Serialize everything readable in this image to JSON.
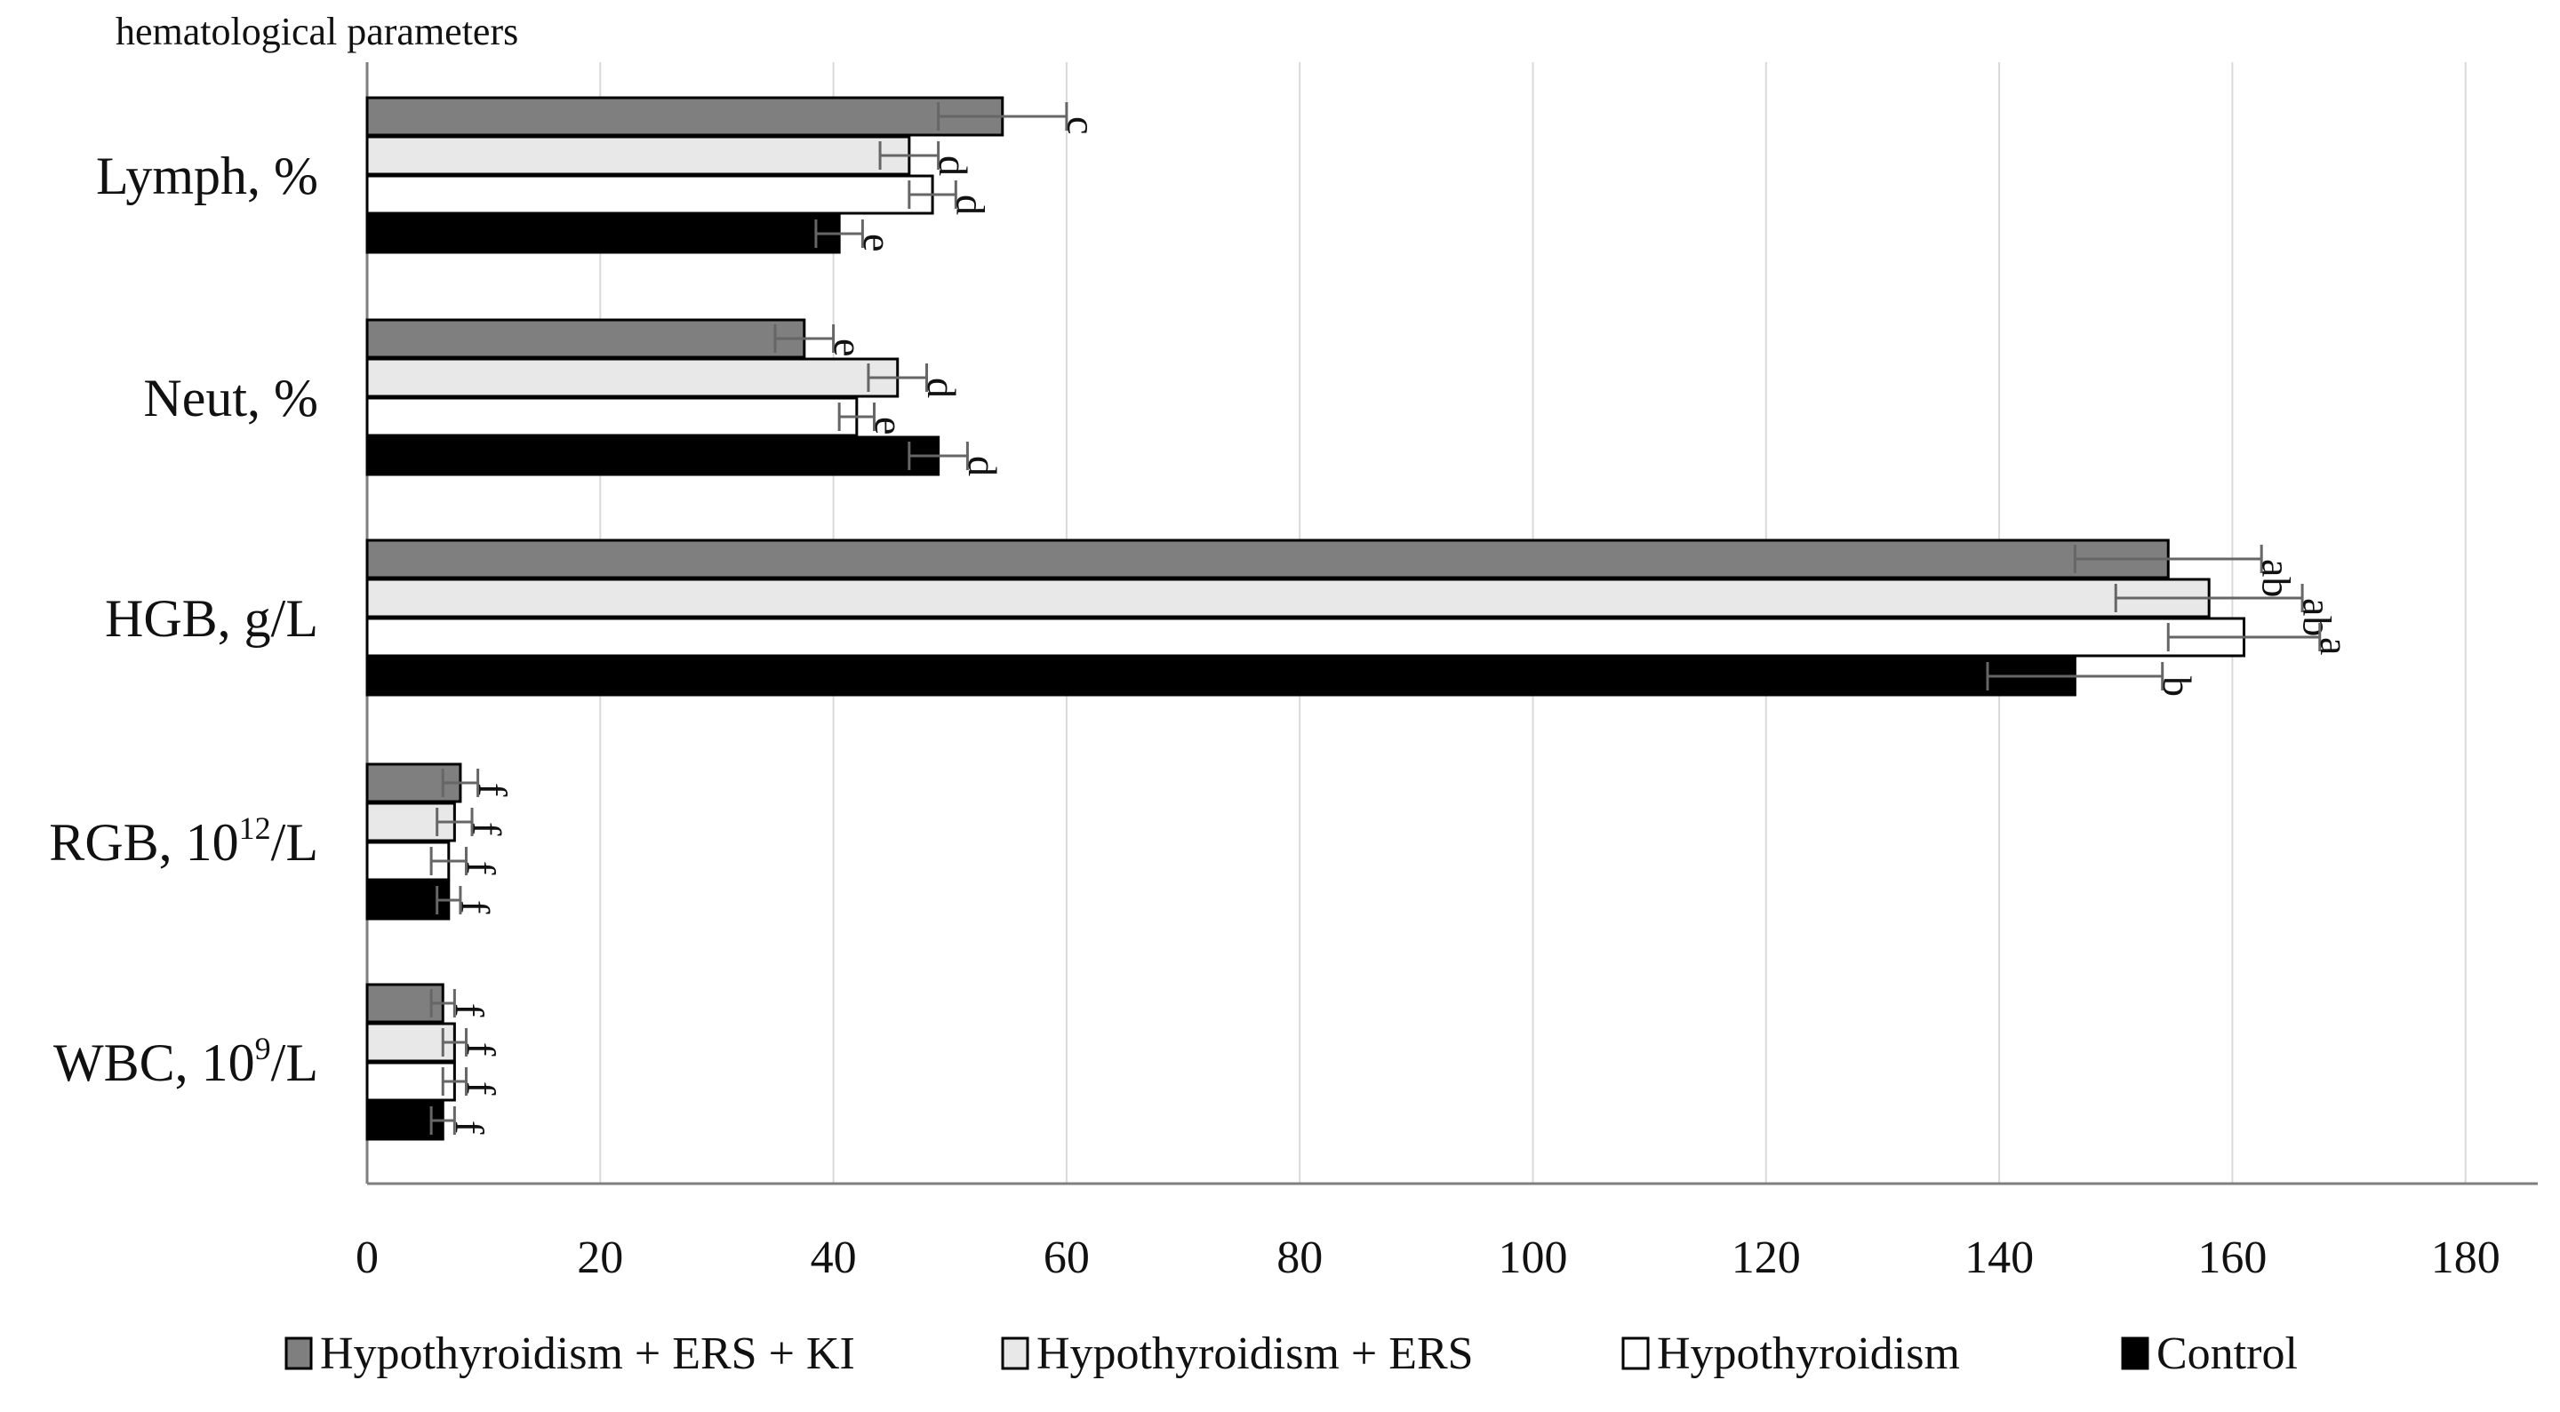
{
  "corner_label": "hematological parameters",
  "chart_data": {
    "type": "bar",
    "orientation": "horizontal",
    "title": "",
    "xlabel": "",
    "ylabel": "",
    "xlim": [
      0,
      180
    ],
    "x_ticks": [
      0,
      20,
      40,
      60,
      80,
      100,
      120,
      140,
      160,
      180
    ],
    "vertical_grid": true,
    "legend_position": "bottom",
    "categories": [
      {
        "label": "Lymph, %",
        "sup": "",
        "suffix": ""
      },
      {
        "label": "Neut, %",
        "sup": "",
        "suffix": ""
      },
      {
        "label": "HGB, g/L",
        "sup": "",
        "suffix": ""
      },
      {
        "label": "RGB, 10",
        "sup": "12",
        "suffix": "/L"
      },
      {
        "label": "WBC, 10",
        "sup": "9",
        "suffix": "/L"
      }
    ],
    "series": [
      {
        "name": "Hypothyroidism + ERS + KI",
        "color": "#7f7f7f",
        "values": [
          54.5,
          37.5,
          154.5,
          8,
          6.5
        ],
        "errors": [
          5.5,
          2.5,
          8,
          1.5,
          1
        ],
        "letters": [
          "c",
          "e",
          "ab",
          "f",
          "f"
        ]
      },
      {
        "name": "Hypothyroidism + ERS",
        "color": "#e8e8e8",
        "values": [
          46.5,
          45.5,
          158,
          7.5,
          7.5
        ],
        "errors": [
          2.5,
          2.5,
          8,
          1.5,
          1
        ],
        "letters": [
          "d",
          "d",
          "ab",
          "f",
          "f"
        ]
      },
      {
        "name": "Hypothyroidism",
        "color": "#ffffff",
        "values": [
          48.5,
          42,
          161,
          7,
          7.5
        ],
        "errors": [
          2,
          1.5,
          6.5,
          1.5,
          1
        ],
        "letters": [
          "d",
          "e",
          "a",
          "f",
          "f"
        ]
      },
      {
        "name": "Control",
        "color": "#000000",
        "values": [
          40.5,
          49,
          146.5,
          7,
          6.5
        ],
        "errors": [
          2,
          2.5,
          7.5,
          1,
          1
        ],
        "letters": [
          "e",
          "d",
          "b",
          "f",
          "f"
        ]
      }
    ]
  }
}
